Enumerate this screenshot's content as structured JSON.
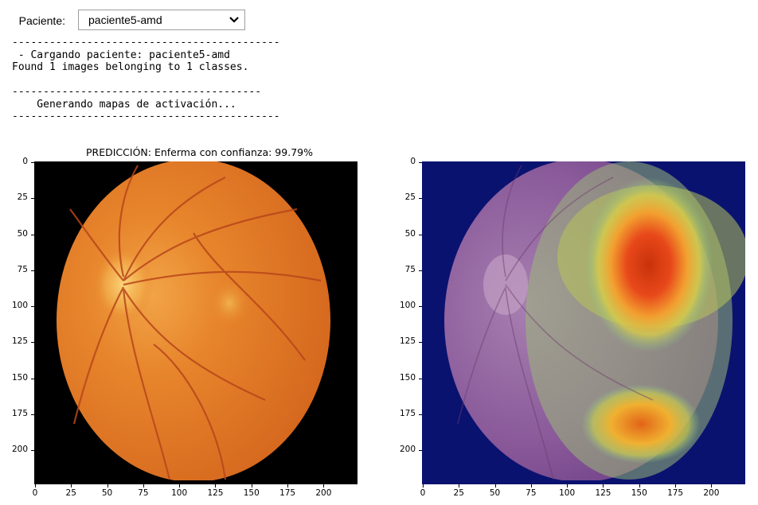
{
  "selector": {
    "label": "Paciente:",
    "value": "paciente5-amd",
    "options": [
      "paciente5-amd"
    ]
  },
  "console": {
    "lines": [
      "-------------------------------------------",
      " - Cargando paciente: paciente5-amd",
      "Found 1 images belonging to 1 classes.",
      "",
      "----------------------------------------",
      "    Generando mapas de activación...",
      "-------------------------------------------"
    ]
  },
  "figures": {
    "left": {
      "title": "PREDICCIÓN: Enferma  con confianza: 99.79%",
      "image": "fundus-image"
    },
    "right": {
      "title": "",
      "image": "activation-heatmap-overlay"
    },
    "x_ticks": [
      "0",
      "25",
      "50",
      "75",
      "100",
      "125",
      "150",
      "175",
      "200"
    ],
    "y_ticks": [
      "0",
      "25",
      "50",
      "75",
      "100",
      "125",
      "150",
      "175",
      "200"
    ],
    "tick_values": [
      0,
      25,
      50,
      75,
      100,
      125,
      150,
      175,
      200
    ],
    "image_size": 224
  },
  "colors": {
    "fundus": "#e07a25",
    "heat_background": "#0a1270",
    "heat_hot": "#e63a10"
  }
}
